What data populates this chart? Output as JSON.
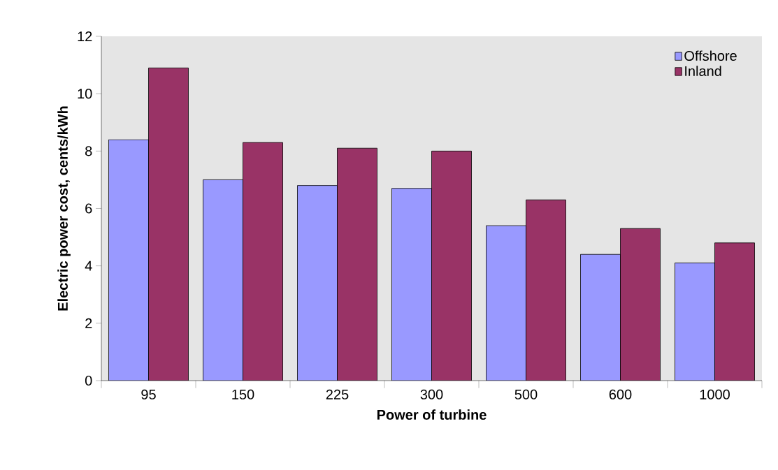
{
  "chart_data": {
    "type": "bar",
    "xlabel": "Power of turbine",
    "ylabel": "Electric power cost, cents/kWh",
    "categories": [
      "95",
      "150",
      "225",
      "300",
      "500",
      "600",
      "1000"
    ],
    "series": [
      {
        "name": "Offshore",
        "color": "#9999ff",
        "values": [
          8.4,
          7.0,
          6.8,
          6.7,
          5.4,
          4.4,
          4.1
        ]
      },
      {
        "name": "Inland",
        "color": "#993366",
        "values": [
          10.9,
          8.3,
          8.1,
          8.0,
          6.3,
          5.3,
          4.8
        ]
      }
    ],
    "ylim": [
      0,
      12
    ],
    "yticks": [
      0,
      2,
      4,
      6,
      8,
      10,
      12
    ],
    "legend": "top right"
  }
}
